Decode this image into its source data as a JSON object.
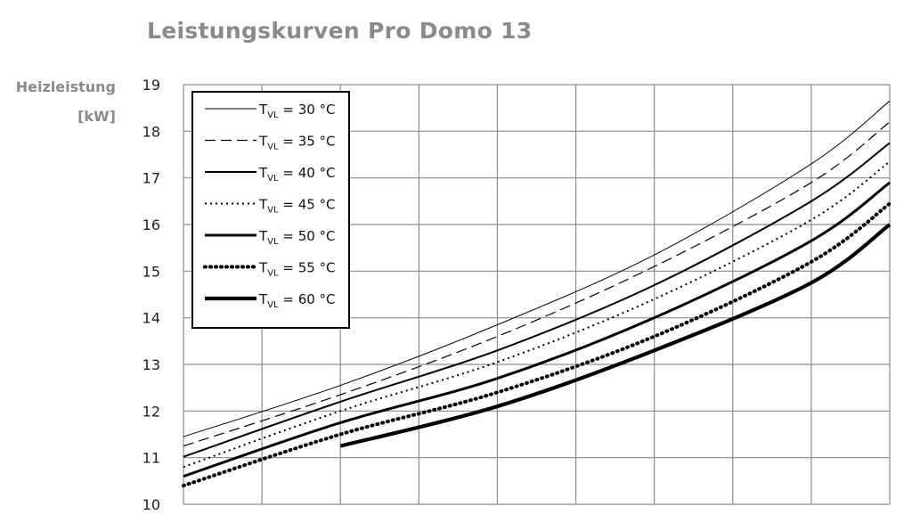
{
  "chart_data": {
    "type": "line",
    "title": "Leistungskurven Pro Domo 13",
    "ylabel_line1": "Heizleistung",
    "ylabel_line2": "[kW]",
    "ylim": [
      10,
      19
    ],
    "yticks": [
      10,
      11,
      12,
      13,
      14,
      15,
      16,
      17,
      18,
      19
    ],
    "xlim": [
      0,
      9
    ],
    "x_gridlines": 9,
    "x_tick_labels": [],
    "grid": true,
    "legend_position": "top-left",
    "series": [
      {
        "name": "30 °C",
        "style": "thin-solid",
        "points": [
          [
            0,
            11.45
          ],
          [
            2,
            12.55
          ],
          [
            4,
            13.85
          ],
          [
            6,
            15.35
          ],
          [
            8,
            17.3
          ],
          [
            9,
            18.65
          ]
        ]
      },
      {
        "name": "35 °C",
        "style": "dashed",
        "points": [
          [
            0,
            11.25
          ],
          [
            2,
            12.35
          ],
          [
            4,
            13.6
          ],
          [
            6,
            15.1
          ],
          [
            8,
            16.9
          ],
          [
            9,
            18.2
          ]
        ]
      },
      {
        "name": "40 °C",
        "style": "medium-solid",
        "points": [
          [
            0,
            11.02
          ],
          [
            2,
            12.2
          ],
          [
            4,
            13.3
          ],
          [
            6,
            14.7
          ],
          [
            8,
            16.5
          ],
          [
            9,
            17.75
          ]
        ]
      },
      {
        "name": "45 °C",
        "style": "dotted",
        "points": [
          [
            0,
            10.8
          ],
          [
            2,
            12.0
          ],
          [
            4,
            13.05
          ],
          [
            6,
            14.4
          ],
          [
            8,
            16.1
          ],
          [
            9,
            17.35
          ]
        ]
      },
      {
        "name": "50 °C",
        "style": "thick-solid",
        "points": [
          [
            0,
            10.6
          ],
          [
            2,
            11.75
          ],
          [
            4,
            12.7
          ],
          [
            6,
            14.0
          ],
          [
            8,
            15.65
          ],
          [
            9,
            16.9
          ]
        ]
      },
      {
        "name": "55 °C",
        "style": "thick-dotted",
        "points": [
          [
            0,
            10.4
          ],
          [
            2,
            11.5
          ],
          [
            4,
            12.4
          ],
          [
            6,
            13.6
          ],
          [
            8,
            15.2
          ],
          [
            9,
            16.45
          ]
        ]
      },
      {
        "name": "60 °C",
        "style": "extra-thick-solid",
        "points": [
          [
            2,
            11.25
          ],
          [
            4,
            12.1
          ],
          [
            6,
            13.3
          ],
          [
            8,
            14.75
          ],
          [
            9,
            16.0
          ]
        ]
      }
    ],
    "legend": {
      "prefix_main": "T",
      "prefix_sub": "VL",
      "equals": "="
    }
  }
}
